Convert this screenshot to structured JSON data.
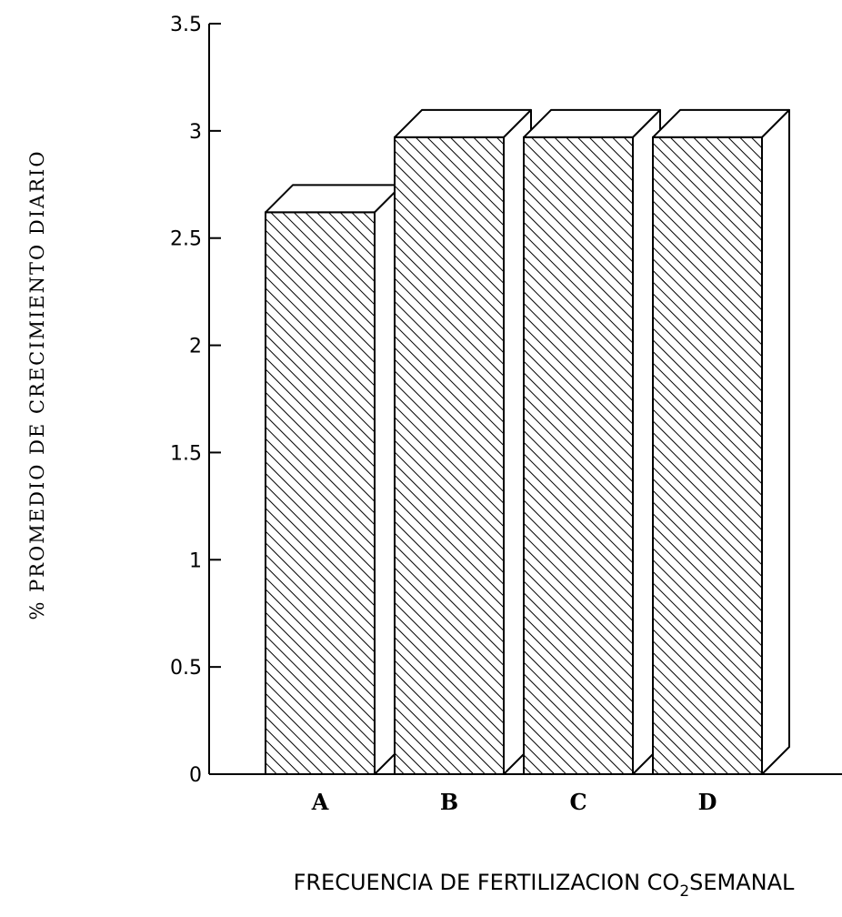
{
  "chart_data": {
    "type": "bar",
    "categories": [
      "A",
      "B",
      "C",
      "D"
    ],
    "values": [
      2.62,
      2.97,
      2.97,
      2.97
    ],
    "ylim": [
      0,
      3.5
    ],
    "yticks": [
      {
        "value": 0,
        "label": "0"
      },
      {
        "value": 0.5,
        "label": "0.5"
      },
      {
        "value": 1,
        "label": "1"
      },
      {
        "value": 1.5,
        "label": "1.5"
      },
      {
        "value": 2,
        "label": "2"
      },
      {
        "value": 2.5,
        "label": "2.5"
      },
      {
        "value": 3,
        "label": "3"
      },
      {
        "value": 3.5,
        "label": "3.5"
      }
    ],
    "ylabel": "% PROMEDIO DE CRECIMIENTO DIARIO",
    "xlabel_parts": {
      "before": "FRECUENCIA DE FERTILIZACION CO",
      "subscript": "2",
      "after": "SEMANAL"
    },
    "grid": false,
    "legend": "none",
    "style": "3d-hatched-bars"
  }
}
